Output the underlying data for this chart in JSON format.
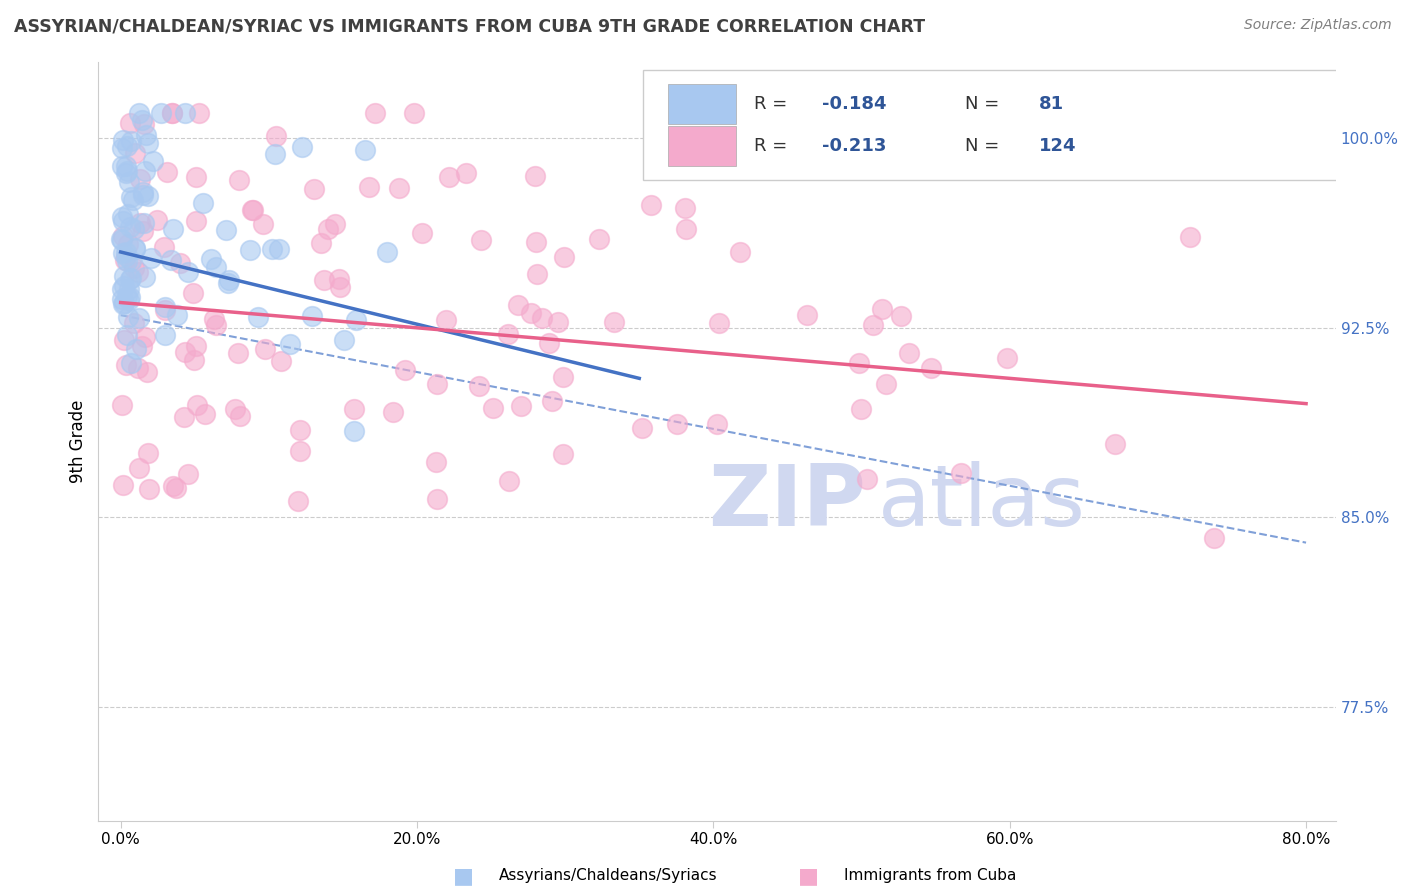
{
  "title": "ASSYRIAN/CHALDEAN/SYRIAC VS IMMIGRANTS FROM CUBA 9TH GRADE CORRELATION CHART",
  "source": "Source: ZipAtlas.com",
  "ylabel": "9th Grade",
  "x_ticks": [
    0.0,
    20.0,
    40.0,
    60.0,
    80.0
  ],
  "y_ticks": [
    77.5,
    85.0,
    92.5,
    100.0
  ],
  "xlim": [
    -1.5,
    82.0
  ],
  "ylim": [
    73.0,
    103.0
  ],
  "blue_color": "#A8C8F0",
  "pink_color": "#F4AACC",
  "blue_line_color": "#4472C4",
  "pink_line_color": "#E8608A",
  "dashed_line_color": "#80A0D8",
  "legend_r_blue": "-0.184",
  "legend_n_blue": "81",
  "legend_r_pink": "-0.213",
  "legend_n_pink": "124",
  "legend_value_color": "#2F5597",
  "title_color": "#404040",
  "source_color": "#808080",
  "yticklabel_color": "#4472C4",
  "watermark_color": "#D0D8F0",
  "bottom_legend_blue": "Assyrians/Chaldeans/Syriacs",
  "bottom_legend_pink": "Immigrants from Cuba",
  "blue_trend_x0": 0.0,
  "blue_trend_y0": 95.5,
  "blue_trend_x1": 35.0,
  "blue_trend_y1": 90.5,
  "pink_trend_x0": 0.0,
  "pink_trend_y0": 93.5,
  "pink_trend_x1": 80.0,
  "pink_trend_y1": 89.5,
  "dash_trend_x0": 0.0,
  "dash_trend_y0": 93.0,
  "dash_trend_x1": 80.0,
  "dash_trend_y1": 84.0
}
